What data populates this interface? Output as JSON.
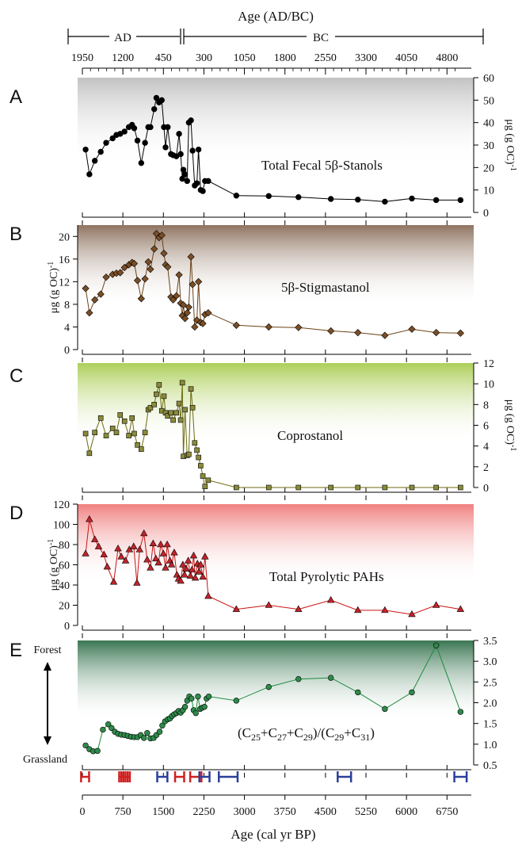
{
  "top_axis": {
    "title": "Age (AD/BC)",
    "era_ad": "AD",
    "era_bc": "BC",
    "ticks": [
      {
        "label": "1950",
        "bp": 0
      },
      {
        "label": "1200",
        "bp": 750
      },
      {
        "label": "450",
        "bp": 1500
      },
      {
        "label": "300",
        "bp": 2250
      },
      {
        "label": "1050",
        "bp": 3000
      },
      {
        "label": "1800",
        "bp": 3750
      },
      {
        "label": "2550",
        "bp": 4500
      },
      {
        "label": "3300",
        "bp": 5250
      },
      {
        "label": "4050",
        "bp": 6000
      },
      {
        "label": "4800",
        "bp": 6750
      }
    ]
  },
  "x_axis": {
    "label": "Age (cal yr BP)",
    "range": [
      0,
      7200
    ],
    "ticks": [
      0,
      750,
      1500,
      2250,
      3000,
      3750,
      4500,
      5250,
      6000,
      6750
    ],
    "tick_labels": [
      "0",
      "750",
      "1500",
      "2250",
      "3000",
      "3750",
      "4500",
      "5250",
      "6000",
      "6750"
    ]
  },
  "colors": {
    "A": "#9a9a9a",
    "B": "#7a5a44",
    "C": "#a8cc50",
    "D": "#f08080",
    "E": "#2f6e48",
    "lineA": "#000000",
    "lineB": "#6b4216",
    "lineC": "#6b6b10",
    "lineD": "#cc1111",
    "lineE": "#1d8a3e",
    "markerA": "#000000",
    "markerB": "#7a4e26",
    "markerC": "#8a8a3a",
    "markerD": "#c0242a",
    "markerE": "#2e8b4a",
    "date_red": "#d02020",
    "date_blue": "#2a3f9a"
  },
  "chart_data": [
    {
      "panel": "A",
      "type": "scatter",
      "series_label": "Total Fecal 5β-Stanols",
      "ylabel": "μg (g OC)-1",
      "y_axis_side": "right",
      "ylim": [
        0,
        60
      ],
      "yticks": [
        0,
        10,
        20,
        30,
        40,
        50,
        60
      ],
      "marker": "circle",
      "x": [
        60,
        130,
        230,
        340,
        440,
        560,
        630,
        700,
        780,
        860,
        920,
        960,
        1020,
        1090,
        1160,
        1220,
        1260,
        1330,
        1370,
        1420,
        1470,
        1510,
        1540,
        1580,
        1640,
        1680,
        1740,
        1790,
        1820,
        1850,
        1870,
        1900,
        1940,
        1970,
        2010,
        2040,
        2080,
        2120,
        2150,
        2190,
        2230,
        2270,
        2330,
        2850,
        3450,
        4000,
        4600,
        5100,
        5600,
        6100,
        6550,
        7000
      ],
      "y": [
        28,
        17,
        23,
        27,
        31,
        33,
        34.5,
        35,
        36,
        38,
        39,
        37.5,
        32,
        22,
        31,
        38,
        38,
        46,
        51,
        49,
        50,
        38,
        29,
        38,
        26,
        25.5,
        25,
        35,
        26,
        15,
        19,
        17,
        14,
        40,
        41,
        27.5,
        12,
        13,
        28,
        10,
        9.5,
        14,
        14,
        7.5,
        7.3,
        6.8,
        6,
        5.7,
        4.8,
        6.2,
        5.5,
        5.5
      ]
    },
    {
      "panel": "B",
      "type": "scatter",
      "series_label": "5β-Stigmastanol",
      "ylabel": "μg (g OC)-1",
      "y_axis_side": "left",
      "ylim": [
        0,
        22
      ],
      "yticks": [
        0,
        4,
        8,
        12,
        16,
        20
      ],
      "marker": "diamond",
      "x": [
        60,
        130,
        230,
        340,
        440,
        560,
        630,
        700,
        780,
        860,
        920,
        960,
        1020,
        1090,
        1160,
        1220,
        1260,
        1330,
        1370,
        1420,
        1470,
        1510,
        1540,
        1580,
        1640,
        1680,
        1740,
        1790,
        1820,
        1850,
        1870,
        1900,
        1940,
        1970,
        2010,
        2040,
        2080,
        2120,
        2150,
        2190,
        2230,
        2270,
        2330,
        2850,
        3450,
        4000,
        4600,
        5100,
        5600,
        6100,
        6550,
        7000
      ],
      "y": [
        10.8,
        6.5,
        8.8,
        9.8,
        12.8,
        13.3,
        13.5,
        13.6,
        14.5,
        15,
        15.4,
        15.2,
        12.2,
        9,
        12.5,
        15.5,
        14.2,
        17.8,
        20.5,
        19.8,
        20.2,
        17,
        15,
        14.6,
        9.3,
        8.8,
        9.5,
        13.2,
        8.2,
        6,
        7.9,
        5.5,
        6.5,
        7.5,
        16.4,
        11.5,
        4,
        5.2,
        12,
        4.8,
        4.6,
        6.2,
        6.5,
        4.3,
        4,
        3.9,
        3.3,
        3,
        2.5,
        3.6,
        3,
        2.9
      ]
    },
    {
      "panel": "C",
      "type": "scatter",
      "series_label": "Coprostanol",
      "ylabel": "μg (g OC)-1",
      "y_axis_side": "right",
      "ylim": [
        0,
        12
      ],
      "yticks": [
        0,
        2,
        4,
        6,
        8,
        10,
        12
      ],
      "marker": "square",
      "x": [
        60,
        130,
        230,
        340,
        440,
        560,
        630,
        700,
        780,
        860,
        920,
        960,
        1020,
        1090,
        1160,
        1220,
        1260,
        1330,
        1370,
        1420,
        1470,
        1510,
        1540,
        1580,
        1640,
        1680,
        1740,
        1790,
        1820,
        1850,
        1870,
        1900,
        1940,
        1970,
        2010,
        2040,
        2080,
        2120,
        2150,
        2190,
        2230,
        2270,
        2330,
        2850,
        3450,
        4000,
        4600,
        5100,
        5600,
        6100,
        6550,
        7000
      ],
      "y": [
        5.2,
        3.3,
        5.3,
        6.7,
        5,
        5.7,
        5.3,
        7,
        6.4,
        5,
        6.7,
        5.2,
        4.1,
        3.7,
        5.3,
        7.5,
        7.7,
        8,
        9,
        9.9,
        7.4,
        8.8,
        7.2,
        6.9,
        7.2,
        6.5,
        7.2,
        8.1,
        6.5,
        10.1,
        3,
        7.5,
        3.1,
        3.2,
        9.5,
        7.7,
        4.3,
        3.6,
        2.9,
        2.1,
        1.1,
        0.1,
        0.7,
        0,
        0,
        0,
        0,
        0,
        0,
        0,
        0,
        0
      ]
    },
    {
      "panel": "D",
      "type": "scatter",
      "series_label": "Total Pyrolytic PAHs",
      "ylabel": "μg (g OC)-1",
      "y_axis_side": "left",
      "ylim": [
        0,
        120
      ],
      "yticks": [
        0,
        20,
        40,
        60,
        80,
        100,
        120
      ],
      "marker": "triangle",
      "x": [
        60,
        130,
        230,
        300,
        400,
        460,
        580,
        660,
        720,
        800,
        870,
        950,
        1010,
        1060,
        1140,
        1200,
        1260,
        1310,
        1360,
        1410,
        1450,
        1500,
        1540,
        1570,
        1620,
        1650,
        1700,
        1750,
        1780,
        1820,
        1860,
        1890,
        1920,
        1960,
        2000,
        2030,
        2060,
        2090,
        2130,
        2160,
        2190,
        2230,
        2270,
        2330,
        2850,
        3450,
        4000,
        4600,
        5100,
        5600,
        6100,
        6550,
        7000
      ],
      "y": [
        71,
        105,
        85,
        78,
        70,
        58,
        43,
        76,
        68,
        64,
        75,
        78,
        42,
        75,
        91,
        65,
        57,
        81,
        66,
        62,
        80,
        71,
        57,
        80,
        64,
        60,
        72,
        50,
        46,
        44,
        60,
        50,
        56,
        64,
        49,
        55,
        69,
        47,
        61,
        53,
        60,
        48,
        68,
        29,
        16,
        20,
        16,
        25,
        15,
        15,
        11,
        20,
        16
      ]
    },
    {
      "panel": "E",
      "type": "line",
      "series_label": "(C25+C27+C29)/(C29+C31)",
      "y_top_label": "Forest",
      "y_bottom_label": "Grassland",
      "y_axis_side": "right",
      "ylim": [
        0.5,
        3.5
      ],
      "yticks": [
        0.5,
        1.0,
        1.5,
        2.0,
        2.5,
        3.0,
        3.5
      ],
      "ytick_labels": [
        "0.5",
        "1.0",
        "1.5",
        "2.0",
        "2.5",
        "3.0",
        "3.5"
      ],
      "marker": "circle",
      "x": [
        60,
        130,
        200,
        280,
        380,
        480,
        540,
        600,
        660,
        720,
        780,
        840,
        900,
        960,
        1020,
        1080,
        1140,
        1200,
        1260,
        1320,
        1370,
        1430,
        1480,
        1530,
        1580,
        1620,
        1660,
        1700,
        1740,
        1780,
        1820,
        1860,
        1900,
        1940,
        1980,
        2020,
        2060,
        2100,
        2140,
        2180,
        2220,
        2260,
        2300,
        2340,
        2850,
        3450,
        4000,
        4600,
        5100,
        5600,
        6100,
        6550,
        7000
      ],
      "y": [
        0.97,
        0.88,
        0.83,
        0.84,
        1.35,
        1.48,
        1.39,
        1.3,
        1.25,
        1.23,
        1.22,
        1.2,
        1.18,
        1.17,
        1.17,
        1.22,
        1.15,
        1.27,
        1.14,
        1.15,
        1.22,
        1.3,
        1.45,
        1.55,
        1.6,
        1.62,
        1.68,
        1.72,
        1.75,
        1.8,
        1.76,
        1.82,
        1.9,
        2.05,
        2.15,
        2.1,
        1.82,
        1.75,
        2.15,
        1.85,
        1.88,
        1.9,
        2.1,
        2.15,
        2.05,
        2.38,
        2.57,
        2.6,
        2.25,
        1.85,
        2.25,
        3.38,
        1.78
      ]
    }
  ],
  "dates": [
    {
      "center": 50,
      "err": 30,
      "color": "red"
    },
    {
      "center": 740,
      "err": 15,
      "color": "red"
    },
    {
      "center": 780,
      "err": 15,
      "color": "red"
    },
    {
      "center": 820,
      "err": 15,
      "color": "red"
    },
    {
      "center": 1480,
      "err": 50,
      "color": "blue"
    },
    {
      "center": 1800,
      "err": 40,
      "color": "red"
    },
    {
      "center": 2100,
      "err": 60,
      "color": "red"
    },
    {
      "center": 2260,
      "err": 50,
      "color": "blue"
    },
    {
      "center": 2700,
      "err": 130,
      "color": "blue"
    },
    {
      "center": 4850,
      "err": 80,
      "color": "blue"
    },
    {
      "center": 7000,
      "err": 70,
      "color": "blue"
    }
  ]
}
